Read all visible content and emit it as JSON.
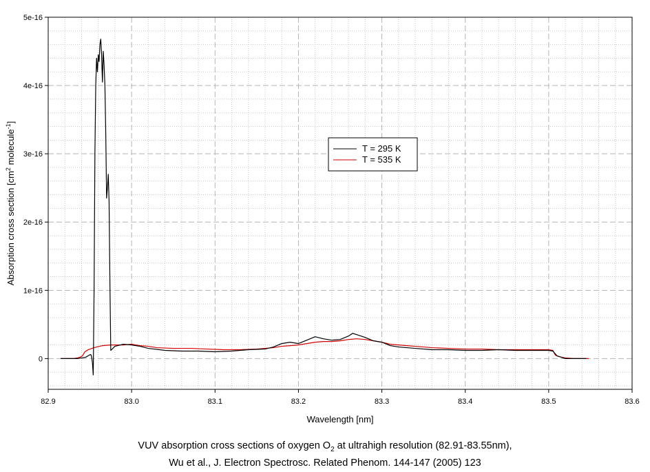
{
  "chart_data": {
    "type": "line",
    "xlabel": "Wavelength [nm]",
    "ylabel": {
      "text": "Absorption cross section [cm",
      "sup1": "2",
      "mid": " molecule",
      "sup2": "-1",
      "end": "]"
    },
    "xlim": [
      82.9,
      83.6
    ],
    "ylim": [
      -4.5e-17,
      5e-16
    ],
    "x_ticks": [
      82.9,
      83.0,
      83.1,
      83.2,
      83.3,
      83.4,
      83.5,
      83.6
    ],
    "x_tick_labels": [
      "82.9",
      "83.0",
      "83.1",
      "83.2",
      "83.3",
      "83.4",
      "83.5",
      "83.6"
    ],
    "y_ticks": [
      0,
      1e-16,
      2e-16,
      3e-16,
      4e-16,
      5e-16
    ],
    "y_tick_labels": [
      "0",
      "1e-16",
      "2e-16",
      "3e-16",
      "4e-16",
      "5e-16"
    ],
    "grid": true,
    "legend_position": "center-right",
    "series": [
      {
        "name": "T = 295 K",
        "color": "#000000",
        "points": [
          [
            82.915,
            0
          ],
          [
            82.935,
            0
          ],
          [
            82.945,
            2e-18
          ],
          [
            82.949,
            5e-18
          ],
          [
            82.951,
            6e-18
          ],
          [
            82.952,
            3e-18
          ],
          [
            82.953,
            -6e-18
          ],
          [
            82.954,
            -2.4e-17
          ],
          [
            82.955,
            1e-16
          ],
          [
            82.956,
            3e-16
          ],
          [
            82.957,
            4e-16
          ],
          [
            82.958,
            4.4e-16
          ],
          [
            82.959,
            4.2e-16
          ],
          [
            82.96,
            4.45e-16
          ],
          [
            82.961,
            4.35e-16
          ],
          [
            82.962,
            4.6e-16
          ],
          [
            82.963,
            4.68e-16
          ],
          [
            82.964,
            4.45e-16
          ],
          [
            82.965,
            4.05e-16
          ],
          [
            82.966,
            4.5e-16
          ],
          [
            82.967,
            4.3e-16
          ],
          [
            82.968,
            4e-16
          ],
          [
            82.969,
            3.3e-16
          ],
          [
            82.97,
            2.35e-16
          ],
          [
            82.971,
            2.5e-16
          ],
          [
            82.972,
            2.7e-16
          ],
          [
            82.973,
            2.3e-16
          ],
          [
            82.974,
            1.1e-16
          ],
          [
            82.975,
            1.2e-17
          ],
          [
            82.98,
            1.8e-17
          ],
          [
            82.99,
            2.1e-17
          ],
          [
            83.0,
            2e-17
          ],
          [
            83.01,
            1.8e-17
          ],
          [
            83.02,
            1.5e-17
          ],
          [
            83.04,
            1.2e-17
          ],
          [
            83.06,
            1.1e-17
          ],
          [
            83.08,
            1.1e-17
          ],
          [
            83.1,
            1e-17
          ],
          [
            83.12,
            1.1e-17
          ],
          [
            83.14,
            1.3e-17
          ],
          [
            83.16,
            1.4e-17
          ],
          [
            83.17,
            1.7e-17
          ],
          [
            83.18,
            2.2e-17
          ],
          [
            83.19,
            2.4e-17
          ],
          [
            83.2,
            2.2e-17
          ],
          [
            83.21,
            2.7e-17
          ],
          [
            83.22,
            3.2e-17
          ],
          [
            83.23,
            2.9e-17
          ],
          [
            83.24,
            2.7e-17
          ],
          [
            83.25,
            2.8e-17
          ],
          [
            83.26,
            3.3e-17
          ],
          [
            83.265,
            3.7e-17
          ],
          [
            83.27,
            3.5e-17
          ],
          [
            83.28,
            3.1e-17
          ],
          [
            83.29,
            2.6e-17
          ],
          [
            83.3,
            2.4e-17
          ],
          [
            83.31,
            1.9e-17
          ],
          [
            83.32,
            1.7e-17
          ],
          [
            83.33,
            1.6e-17
          ],
          [
            83.34,
            1.5e-17
          ],
          [
            83.36,
            1.3e-17
          ],
          [
            83.38,
            1.3e-17
          ],
          [
            83.4,
            1.2e-17
          ],
          [
            83.42,
            1.2e-17
          ],
          [
            83.44,
            1.3e-17
          ],
          [
            83.46,
            1.2e-17
          ],
          [
            83.48,
            1.2e-17
          ],
          [
            83.5,
            1.2e-17
          ],
          [
            83.505,
            1.1e-17
          ],
          [
            83.51,
            4e-18
          ],
          [
            83.515,
            2e-18
          ],
          [
            83.52,
            0
          ],
          [
            83.535,
            0
          ],
          [
            83.545,
            0
          ]
        ]
      },
      {
        "name": "T = 535 K",
        "color": "#d00000",
        "points": [
          [
            82.915,
            0
          ],
          [
            82.93,
            0
          ],
          [
            82.935,
            1e-18
          ],
          [
            82.938,
            2e-18
          ],
          [
            82.941,
            4e-18
          ],
          [
            82.944,
            1e-17
          ],
          [
            82.948,
            1.3e-17
          ],
          [
            82.955,
            1.6e-17
          ],
          [
            82.965,
            1.9e-17
          ],
          [
            82.975,
            2e-17
          ],
          [
            82.99,
            2e-17
          ],
          [
            83.0,
            2.1e-17
          ],
          [
            83.01,
            1.9e-17
          ],
          [
            83.02,
            1.8e-17
          ],
          [
            83.03,
            1.6e-17
          ],
          [
            83.05,
            1.5e-17
          ],
          [
            83.07,
            1.5e-17
          ],
          [
            83.09,
            1.4e-17
          ],
          [
            83.11,
            1.3e-17
          ],
          [
            83.13,
            1.3e-17
          ],
          [
            83.15,
            1.4e-17
          ],
          [
            83.17,
            1.6e-17
          ],
          [
            83.18,
            1.8e-17
          ],
          [
            83.19,
            1.9e-17
          ],
          [
            83.2,
            2e-17
          ],
          [
            83.21,
            2.2e-17
          ],
          [
            83.22,
            2.4e-17
          ],
          [
            83.23,
            2.5e-17
          ],
          [
            83.24,
            2.5e-17
          ],
          [
            83.25,
            2.6e-17
          ],
          [
            83.26,
            2.8e-17
          ],
          [
            83.27,
            2.9e-17
          ],
          [
            83.28,
            2.8e-17
          ],
          [
            83.29,
            2.6e-17
          ],
          [
            83.3,
            2.4e-17
          ],
          [
            83.31,
            2.1e-17
          ],
          [
            83.32,
            2e-17
          ],
          [
            83.33,
            1.9e-17
          ],
          [
            83.34,
            1.8e-17
          ],
          [
            83.36,
            1.6e-17
          ],
          [
            83.38,
            1.5e-17
          ],
          [
            83.4,
            1.4e-17
          ],
          [
            83.42,
            1.4e-17
          ],
          [
            83.44,
            1.3e-17
          ],
          [
            83.46,
            1.3e-17
          ],
          [
            83.48,
            1.3e-17
          ],
          [
            83.5,
            1.3e-17
          ],
          [
            83.505,
            1.2e-17
          ],
          [
            83.508,
            5e-18
          ],
          [
            83.512,
            3e-18
          ],
          [
            83.52,
            1e-18
          ],
          [
            83.53,
            0
          ],
          [
            83.548,
            0
          ]
        ]
      }
    ]
  },
  "caption": {
    "line1_before": "VUV absorption cross sections of oxygen O",
    "line1_sub": "2",
    "line1_after": " at ultrahigh resolution (82.91-83.55nm),",
    "line2": "Wu et al.,  J. Electron Spectrosc. Related Phenom. 144-147 (2005) 123"
  }
}
